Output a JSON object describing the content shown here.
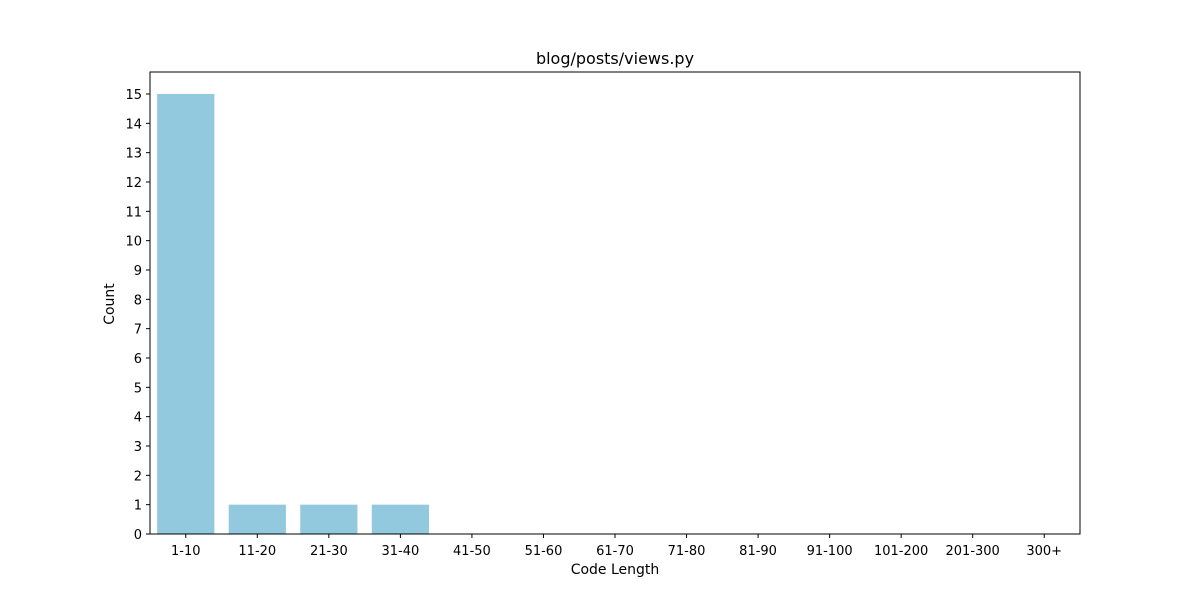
{
  "chart_data": {
    "type": "bar",
    "title": "blog/posts/views.py",
    "xlabel": "Code Length",
    "ylabel": "Count",
    "categories": [
      "1-10",
      "11-20",
      "21-30",
      "31-40",
      "41-50",
      "51-60",
      "61-70",
      "71-80",
      "81-90",
      "91-100",
      "101-200",
      "201-300",
      "300+"
    ],
    "values": [
      15,
      1,
      1,
      1,
      0,
      0,
      0,
      0,
      0,
      0,
      0,
      0,
      0
    ],
    "yticks": [
      0,
      1,
      2,
      3,
      4,
      5,
      6,
      7,
      8,
      9,
      10,
      11,
      12,
      13,
      14,
      15
    ],
    "ylim": [
      0,
      15.75
    ],
    "grid": false,
    "legend": "none",
    "bar_color": "#92C9DF"
  }
}
